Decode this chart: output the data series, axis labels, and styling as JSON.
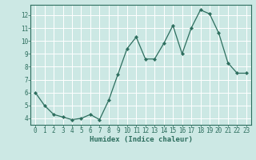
{
  "x": [
    0,
    1,
    2,
    3,
    4,
    5,
    6,
    7,
    8,
    9,
    10,
    11,
    12,
    13,
    14,
    15,
    16,
    17,
    18,
    19,
    20,
    21,
    22,
    23
  ],
  "y": [
    6.0,
    5.0,
    4.3,
    4.1,
    3.9,
    4.0,
    4.3,
    3.9,
    5.4,
    7.4,
    9.4,
    10.3,
    8.6,
    8.6,
    9.8,
    11.2,
    9.0,
    11.0,
    12.4,
    12.1,
    10.6,
    8.3,
    7.5,
    7.5
  ],
  "xlabel": "Humidex (Indice chaleur)",
  "bg_color": "#cce8e4",
  "line_color": "#2d6e5e",
  "grid_color": "#ffffff",
  "xlim_min": -0.5,
  "xlim_max": 23.5,
  "ylim_min": 3.5,
  "ylim_max": 12.8,
  "ytick_values": [
    4,
    5,
    6,
    7,
    8,
    9,
    10,
    11,
    12
  ],
  "ytick_labels": [
    "4",
    "5",
    "6",
    "7",
    "8",
    "9",
    "10",
    "11",
    "12"
  ],
  "xtick_values": [
    0,
    1,
    2,
    3,
    4,
    5,
    6,
    7,
    8,
    9,
    10,
    11,
    12,
    13,
    14,
    15,
    16,
    17,
    18,
    19,
    20,
    21,
    22,
    23
  ],
  "xtick_labels": [
    "0",
    "1",
    "2",
    "3",
    "4",
    "5",
    "6",
    "7",
    "8",
    "9",
    "10",
    "11",
    "12",
    "13",
    "14",
    "15",
    "16",
    "17",
    "18",
    "19",
    "20",
    "21",
    "22",
    "23"
  ],
  "tick_fontsize": 5.5,
  "xlabel_fontsize": 6.5
}
